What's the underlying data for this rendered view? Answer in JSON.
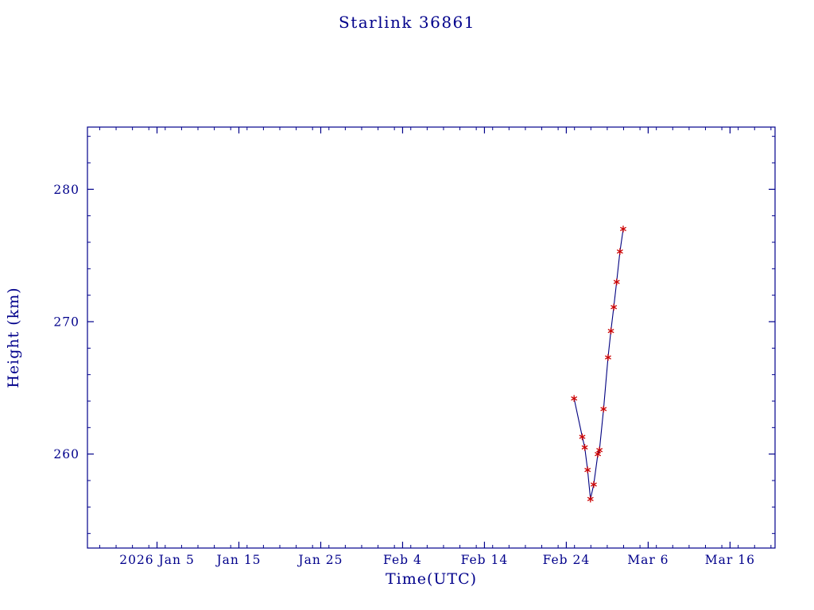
{
  "chart_data": {
    "type": "line",
    "title": "Starlink 36861",
    "xlabel": "Time(UTC)",
    "ylabel": "Height (km)",
    "x_unit": "day of year 2026",
    "xlim": [
      -3.5,
      80.5
    ],
    "ylim": [
      252.9,
      284.7
    ],
    "x_ticks": [
      {
        "t": 5,
        "label": "2026 Jan 5"
      },
      {
        "t": 15,
        "label": "Jan 15"
      },
      {
        "t": 25,
        "label": "Jan 25"
      },
      {
        "t": 35,
        "label": "Feb 4"
      },
      {
        "t": 45,
        "label": "Feb 14"
      },
      {
        "t": 55,
        "label": "Feb 24"
      },
      {
        "t": 65,
        "label": "Mar 6"
      },
      {
        "t": 75,
        "label": "Mar 16"
      }
    ],
    "y_ticks": [
      260,
      270,
      280
    ],
    "x_minor_step": 2,
    "y_minor_step": 2,
    "grid": false,
    "legend": "none",
    "axis_color": "#00008B",
    "text_color": "#00008B",
    "series": [
      {
        "name": "height",
        "line_color": "#000080",
        "marker": "asterisk",
        "marker_color": "#cc0000",
        "points": [
          [
            55.95,
            264.2
          ],
          [
            56.95,
            261.3
          ],
          [
            57.25,
            260.5
          ],
          [
            57.6,
            258.8
          ],
          [
            57.95,
            256.6
          ],
          [
            58.35,
            257.7
          ],
          [
            58.85,
            260.0
          ],
          [
            59.05,
            260.3
          ],
          [
            59.55,
            263.4
          ],
          [
            60.1,
            267.3
          ],
          [
            60.45,
            269.3
          ],
          [
            60.8,
            271.1
          ],
          [
            61.15,
            273.0
          ],
          [
            61.55,
            275.3
          ],
          [
            61.95,
            277.0
          ]
        ]
      }
    ]
  }
}
